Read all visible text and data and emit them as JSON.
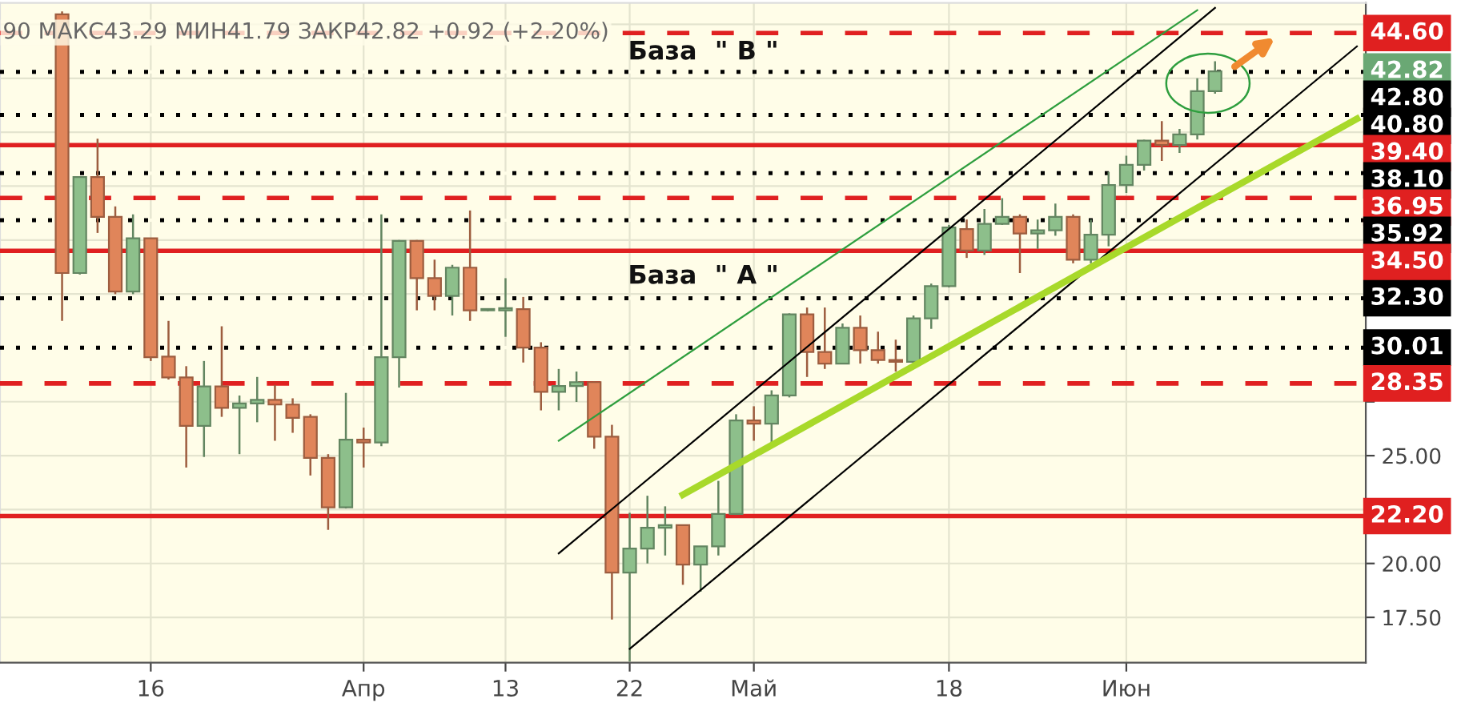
{
  "chart_data": {
    "type": "candlestick",
    "title": "90 МАКС43.29 МИН41.79 ЗАКР42.82 +0.92 (+2.20%)",
    "categories": [
      null,
      null,
      null,
      null,
      null,
      null,
      "16",
      null,
      null,
      null,
      null,
      null,
      null,
      null,
      null,
      null,
      null,
      null,
      "Апр",
      null,
      null,
      null,
      null,
      null,
      null,
      null,
      "13",
      null,
      null,
      null,
      null,
      null,
      null,
      "22",
      null,
      null,
      null,
      null,
      null,
      null,
      "Май",
      null,
      null,
      null,
      null,
      null,
      null,
      null,
      null,
      null,
      null,
      "18",
      null,
      null,
      null,
      null,
      null,
      null,
      null,
      null,
      null,
      "Июн",
      null,
      null,
      null,
      null,
      null,
      null,
      null,
      null,
      null,
      null,
      null,
      null,
      null
    ],
    "ohlc": [
      null,
      [
        45.47,
        45.6,
        31.25,
        33.47
      ],
      [
        33.47,
        37.95,
        33.4,
        37.92
      ],
      [
        37.92,
        39.7,
        35.33,
        36.07
      ],
      [
        36.07,
        36.56,
        32.49,
        32.61
      ],
      [
        32.61,
        36.19,
        32.49,
        35.08
      ],
      [
        35.08,
        35.1,
        29.39,
        29.57
      ],
      [
        29.59,
        31.25,
        28.53,
        28.63
      ],
      [
        28.63,
        29.15,
        24.45,
        26.38
      ],
      [
        26.38,
        29.39,
        24.94,
        28.21
      ],
      [
        28.21,
        31.0,
        26.8,
        27.22
      ],
      [
        27.22,
        27.79,
        25.07,
        27.42
      ],
      [
        27.42,
        28.65,
        26.55,
        27.59
      ],
      [
        27.59,
        28.28,
        25.69,
        27.37
      ],
      [
        27.37,
        27.66,
        26.06,
        26.75
      ],
      [
        26.8,
        26.92,
        24.08,
        24.9
      ],
      [
        24.9,
        25.07,
        21.56,
        22.6
      ],
      [
        22.6,
        27.91,
        22.55,
        25.74
      ],
      [
        25.74,
        26.3,
        24.45,
        25.61
      ],
      [
        25.61,
        36.19,
        25.44,
        29.57
      ],
      [
        29.57,
        35.0,
        28.16,
        34.96
      ],
      [
        34.96,
        35.0,
        31.74,
        33.23
      ],
      [
        33.23,
        34.09,
        31.74,
        32.41
      ],
      [
        32.41,
        33.85,
        31.5,
        33.72
      ],
      [
        33.72,
        36.37,
        31.25,
        31.74
      ],
      [
        31.74,
        31.8,
        31.7,
        31.79
      ],
      [
        31.74,
        33.23,
        30.51,
        31.84
      ],
      [
        31.79,
        32.36,
        29.32,
        30.01
      ],
      [
        30.01,
        30.26,
        27.1,
        27.96
      ],
      [
        27.96,
        29.02,
        27.1,
        28.23
      ],
      [
        28.23,
        28.9,
        27.49,
        28.41
      ],
      [
        28.41,
        28.45,
        25.32,
        25.88
      ],
      [
        25.88,
        26.43,
        17.4,
        19.58
      ],
      [
        19.58,
        22.35,
        15.45,
        20.69
      ],
      [
        20.69,
        23.14,
        20.0,
        21.66
      ],
      [
        21.66,
        22.65,
        20.37,
        21.78
      ],
      [
        21.78,
        21.8,
        19.01,
        19.95
      ],
      [
        19.95,
        20.8,
        18.69,
        20.79
      ],
      [
        20.79,
        23.83,
        20.37,
        22.3
      ],
      [
        22.3,
        26.92,
        22.25,
        26.63
      ],
      [
        26.63,
        27.29,
        25.69,
        26.48
      ],
      [
        26.48,
        28.03,
        25.56,
        27.79
      ],
      [
        27.79,
        31.6,
        27.7,
        31.55
      ],
      [
        31.55,
        31.87,
        28.65,
        29.81
      ],
      [
        29.81,
        31.87,
        29.02,
        29.27
      ],
      [
        29.27,
        31.13,
        29.25,
        30.93
      ],
      [
        30.93,
        31.5,
        29.27,
        29.89
      ],
      [
        29.89,
        30.75,
        29.27,
        29.44
      ],
      [
        29.44,
        30.38,
        28.9,
        29.35
      ],
      [
        29.35,
        31.5,
        29.27,
        31.37
      ],
      [
        31.37,
        32.98,
        30.88,
        32.86
      ],
      [
        32.86,
        35.7,
        32.8,
        35.58
      ],
      [
        35.51,
        35.95,
        34.17,
        34.51
      ],
      [
        34.51,
        36.44,
        34.31,
        35.75
      ],
      [
        35.75,
        36.94,
        35.7,
        36.07
      ],
      [
        36.07,
        36.19,
        33.47,
        35.3
      ],
      [
        35.3,
        35.95,
        34.59,
        35.45
      ],
      [
        35.45,
        36.69,
        35.2,
        36.07
      ],
      [
        36.07,
        36.19,
        33.92,
        34.09
      ],
      [
        34.09,
        35.95,
        33.92,
        35.25
      ],
      [
        35.25,
        38.17,
        34.71,
        37.55
      ],
      [
        37.55,
        38.91,
        37.18,
        38.49
      ],
      [
        38.49,
        39.65,
        38.22,
        39.61
      ],
      [
        39.61,
        40.52,
        38.67,
        39.41
      ],
      [
        39.41,
        40.15,
        39.04,
        39.9
      ],
      [
        39.9,
        42.5,
        39.66,
        41.9
      ],
      [
        41.9,
        43.29,
        41.79,
        42.82
      ],
      null,
      null,
      null,
      null,
      null,
      null,
      null,
      null
    ],
    "colors": [
      null,
      "#e0855a",
      "#8dbf8b",
      "#e0855a",
      "#e0855a",
      "#8dbf8b",
      "#e0855a",
      "#e0855a",
      "#e0855a",
      "#8dbf8b",
      "#e0855a",
      "#8dbf8b",
      "#8dbf8b",
      "#e0855a",
      "#e0855a",
      "#e0855a",
      "#e0855a",
      "#8dbf8b",
      "#e0855a",
      "#8dbf8b",
      "#8dbf8b",
      "#e0855a",
      "#e0855a",
      "#8dbf8b",
      "#e0855a",
      "#8dbf8b",
      "#8dbf8b",
      "#e0855a",
      "#e0855a",
      "#8dbf8b",
      "#8dbf8b",
      "#e0855a",
      "#e0855a",
      "#8dbf8b",
      "#8dbf8b",
      "#8dbf8b",
      "#e0855a",
      "#8dbf8b",
      "#8dbf8b",
      "#8dbf8b",
      "#e0855a",
      "#8dbf8b",
      "#8dbf8b",
      "#e0855a",
      "#e0855a",
      "#8dbf8b",
      "#e0855a",
      "#e0855a",
      "#e0855a",
      "#8dbf8b",
      "#8dbf8b",
      "#8dbf8b",
      "#e0855a",
      "#8dbf8b",
      "#8dbf8b",
      "#e0855a",
      "#8dbf8b",
      "#8dbf8b",
      "#e0855a",
      "#8dbf8b",
      "#8dbf8b",
      "#8dbf8b",
      "#8dbf8b",
      "#e0855a",
      "#8dbf8b",
      "#8dbf8b",
      "#8dbf8b",
      null,
      null,
      null,
      null,
      null,
      null,
      null,
      null
    ],
    "series": [
      {
        "type": "line",
        "color": "#2e9e3e",
        "values": [
          null,
          null,
          null,
          null,
          null,
          null,
          null,
          null,
          null,
          null,
          null,
          null,
          null,
          null,
          null,
          null,
          null,
          null,
          null,
          null,
          null,
          null,
          null,
          null,
          null,
          null,
          null,
          null,
          null,
          25.69,
          null,
          null,
          null,
          null,
          null,
          null,
          null,
          null,
          null,
          null,
          null,
          null,
          null,
          null,
          null,
          null,
          null,
          null,
          null,
          null,
          null,
          null,
          null,
          null,
          null,
          null,
          null,
          null,
          null,
          null,
          null,
          null,
          null,
          null,
          null,
          45.66,
          null,
          null,
          null,
          null,
          null,
          null,
          null,
          null,
          null
        ]
      },
      {
        "type": "line",
        "color": "#000000",
        "values": [
          null,
          null,
          null,
          null,
          null,
          null,
          null,
          null,
          null,
          null,
          null,
          null,
          null,
          null,
          null,
          null,
          null,
          null,
          null,
          null,
          null,
          null,
          null,
          null,
          null,
          null,
          null,
          null,
          null,
          20.47,
          null,
          null,
          null,
          null,
          null,
          null,
          null,
          null,
          null,
          null,
          null,
          null,
          null,
          null,
          null,
          null,
          null,
          null,
          null,
          null,
          null,
          null,
          null,
          null,
          null,
          null,
          null,
          null,
          null,
          null,
          null,
          null,
          null,
          null,
          null,
          null,
          45.77,
          null,
          null,
          null,
          null,
          null,
          null,
          null,
          null
        ]
      },
      {
        "type": "line",
        "color": "#000000",
        "values": [
          null,
          null,
          null,
          null,
          null,
          null,
          null,
          null,
          null,
          null,
          null,
          null,
          null,
          null,
          null,
          null,
          null,
          null,
          null,
          null,
          null,
          null,
          null,
          null,
          null,
          null,
          null,
          null,
          null,
          null,
          null,
          null,
          null,
          16.04,
          null,
          null,
          null,
          null,
          null,
          null,
          null,
          null,
          null,
          null,
          null,
          null,
          null,
          null,
          null,
          null,
          null,
          null,
          null,
          null,
          null,
          null,
          null,
          null,
          null,
          null,
          null,
          null,
          null,
          null,
          null,
          null,
          null,
          null,
          null,
          null,
          null,
          null,
          null,
          null,
          43.98
        ]
      },
      {
        "type": "line",
        "color": "#a8d92a",
        "values": [
          null,
          null,
          null,
          null,
          null,
          null,
          null,
          null,
          null,
          null,
          null,
          null,
          null,
          null,
          null,
          null,
          null,
          null,
          null,
          null,
          null,
          null,
          null,
          null,
          null,
          null,
          null,
          null,
          null,
          null,
          null,
          null,
          null,
          null,
          null,
          null,
          23.19,
          null,
          null,
          null,
          null,
          null,
          null,
          null,
          null,
          null,
          null,
          null,
          null,
          null,
          null,
          null,
          null,
          null,
          null,
          null,
          null,
          null,
          null,
          null,
          null,
          null,
          null,
          null,
          null,
          null,
          null,
          null,
          null,
          null,
          null,
          null,
          null,
          null,
          40.62
        ]
      }
    ],
    "ylim": [
      15.4,
      46.0
    ],
    "yticks": [
      {
        "value": 17.5,
        "label": "17.50"
      },
      {
        "value": 20,
        "label": "20.00"
      },
      {
        "value": 22.5,
        "label": null
      },
      {
        "value": 25,
        "label": "25.00"
      },
      {
        "value": 27.5,
        "label": null
      },
      {
        "value": 30,
        "label": null
      },
      {
        "value": 32.5,
        "label": null
      },
      {
        "value": 35,
        "label": null
      },
      {
        "value": 37.5,
        "label": null
      },
      {
        "value": 40,
        "label": null
      },
      {
        "value": 42.5,
        "label": null
      },
      {
        "value": 45,
        "label": null
      }
    ],
    "grid": true,
    "ref_lines": [
      {
        "axis": "y",
        "value": 44.6,
        "label": "44.60",
        "color": "#e02020",
        "line_style": "dashed"
      },
      {
        "axis": "y",
        "value": 42.8,
        "label": "42.80",
        "color": "#000000",
        "line_style": "dotted"
      },
      {
        "axis": "y",
        "value": 40.8,
        "label": "40.80",
        "color": "#000000",
        "line_style": "dotted"
      },
      {
        "axis": "y",
        "value": 39.4,
        "label": "39.40",
        "color": "#e02020",
        "line_style": "solid"
      },
      {
        "axis": "y",
        "value": 38.1,
        "label": "38.10",
        "color": "#000000",
        "line_style": "dotted"
      },
      {
        "axis": "y",
        "value": 36.95,
        "label": "36.95",
        "color": "#e02020",
        "line_style": "dashed"
      },
      {
        "axis": "y",
        "value": 35.92,
        "label": "35.92",
        "color": "#000000",
        "line_style": "dotted"
      },
      {
        "axis": "y",
        "value": 34.5,
        "label": "34.50",
        "color": "#e02020",
        "line_style": "solid"
      },
      {
        "axis": "y",
        "value": 32.3,
        "label": "32.30",
        "color": "#000000",
        "line_style": "dotted"
      },
      {
        "axis": "y",
        "value": 30.01,
        "label": "30.01",
        "color": "#000000",
        "line_style": "dotted"
      },
      {
        "axis": "y",
        "value": 28.35,
        "label": "28.35",
        "color": "#e02020",
        "line_style": "dashed"
      },
      {
        "axis": "y",
        "value": 22.2,
        "label": "22.20",
        "color": "#e02020",
        "line_style": "solid"
      }
    ],
    "annotations": [
      "База  \" B \"",
      "База  \" A \"",
      "42.82"
    ]
  }
}
